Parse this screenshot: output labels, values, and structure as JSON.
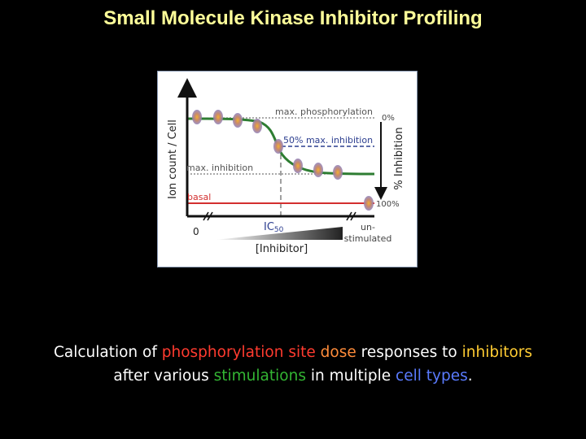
{
  "title": "Small Molecule Kinase Inhibitor Profiling",
  "colors": {
    "title": "#FFFF99",
    "background": "#000000",
    "curve": "#2E7D32",
    "basal": "#D32F2F",
    "half_max": "#2C3E8F",
    "axis": "#111111",
    "cell_body": "#B07AA0",
    "cell_core": "#F2B233"
  },
  "diagram": {
    "y_axis_label": "Ion count / Cell",
    "right_axis_label": "% Inhibition",
    "right_tick_top": "0%",
    "right_tick_bottom": "100%",
    "max_phos_label": "max. phosphorylation",
    "half_max_label": "50% max. inhibition",
    "max_inhib_label": "max. inhibition",
    "basal_label": "basal",
    "ic50_main": "IC",
    "ic50_sub": "50",
    "x_zero": "0",
    "x_axis_label": "[Inhibitor]",
    "unstim_line1": "un-",
    "unstim_line2": "stimulated"
  },
  "caption": {
    "p1": "Calculation of ",
    "phosphorylation": "phosphorylation",
    "p2": " ",
    "site": "site",
    "p3": " ",
    "dose": "dose",
    "p4": " responses to ",
    "inhibitors": "inhibitors",
    "p5": "after various ",
    "stimulations": "stimulations",
    "p6": " in multiple ",
    "cell_types": "cell types",
    "p7": "."
  }
}
